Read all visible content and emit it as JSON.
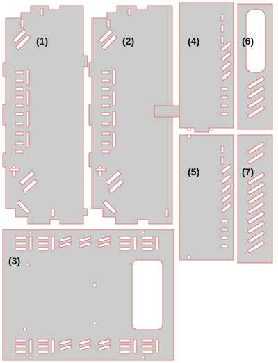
{
  "labels": {
    "p1": "(1)",
    "p2": "(2)",
    "p3": "(3)",
    "p4": "(4)",
    "p5": "(5)",
    "p6": "(6)",
    "p7": "(7)"
  },
  "colors": {
    "panel_fill": "#cccccc",
    "cut_line": "#e05a5a",
    "background": "#ffffff",
    "label_text": "#111111"
  }
}
